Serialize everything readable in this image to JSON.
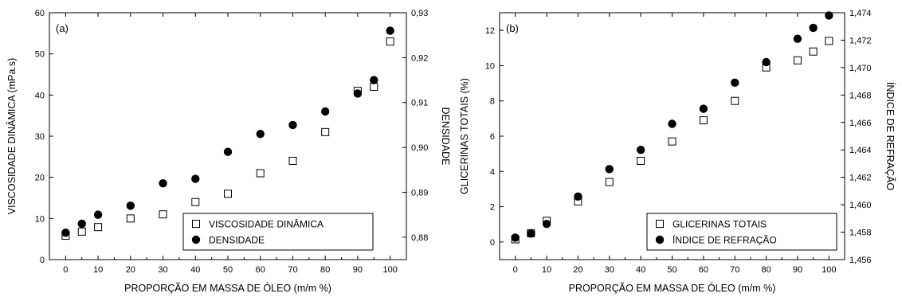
{
  "chart_data": [
    {
      "type": "scatter",
      "panel_label": "(a)",
      "xlabel": "PROPORÇÃO EM MASSA DE ÓLEO (m/m %)",
      "ylabel": "VISCOSIDADE DINÂMICA (mPa.s)",
      "y2label": "DENSIDADE",
      "xlim": [
        -5,
        105
      ],
      "ylim": [
        0,
        60
      ],
      "y2lim": [
        0.875,
        0.93
      ],
      "xticks": [
        0,
        10,
        20,
        30,
        40,
        50,
        60,
        70,
        80,
        90,
        100
      ],
      "yticks": [
        0,
        10,
        20,
        30,
        40,
        50,
        60
      ],
      "y2ticks": [
        0.88,
        0.89,
        0.9,
        0.91,
        0.92,
        0.93
      ],
      "xtick_labels": [
        "0",
        "10",
        "20",
        "30",
        "40",
        "50",
        "60",
        "70",
        "80",
        "90",
        "100"
      ],
      "ytick_labels": [
        "0",
        "10",
        "20",
        "30",
        "40",
        "50",
        "60"
      ],
      "y2tick_labels": [
        "0,88",
        "0,89",
        "0,90",
        "0,91",
        "0,92",
        "0,93"
      ],
      "legend_position": "bottom-right",
      "series": [
        {
          "name": "VISCOSIDADE DINÂMICA",
          "marker": "open-square",
          "axis": "left",
          "x": [
            0,
            5,
            10,
            20,
            30,
            40,
            50,
            60,
            70,
            80,
            90,
            95,
            100
          ],
          "y": [
            5.8,
            6.8,
            7.9,
            10,
            11,
            14,
            16,
            21,
            24,
            31,
            41,
            42,
            53
          ]
        },
        {
          "name": "DENSIDADE",
          "marker": "filled-circle",
          "axis": "right",
          "x": [
            0,
            5,
            10,
            20,
            30,
            40,
            50,
            60,
            70,
            80,
            90,
            95,
            100
          ],
          "y": [
            0.881,
            0.883,
            0.885,
            0.887,
            0.892,
            0.893,
            0.899,
            0.903,
            0.905,
            0.908,
            0.912,
            0.915,
            0.926
          ]
        }
      ]
    },
    {
      "type": "scatter",
      "panel_label": "(b)",
      "xlabel": "PROPORÇÃO EM MASSA DE ÓLEO (m/m %)",
      "ylabel": "GLICERINAS TOTAIS (%)",
      "y2label": "ÍNDICE DE REFRAÇÃO",
      "xlim": [
        -5,
        105
      ],
      "ylim": [
        -1,
        13
      ],
      "y2lim": [
        1.456,
        1.474
      ],
      "xticks": [
        0,
        10,
        20,
        30,
        40,
        50,
        60,
        70,
        80,
        90,
        100
      ],
      "yticks": [
        0,
        2,
        4,
        6,
        8,
        10,
        12
      ],
      "y2ticks": [
        1.456,
        1.458,
        1.46,
        1.462,
        1.464,
        1.466,
        1.468,
        1.47,
        1.472,
        1.474
      ],
      "xtick_labels": [
        "0",
        "10",
        "20",
        "30",
        "40",
        "50",
        "60",
        "70",
        "80",
        "90",
        "100"
      ],
      "ytick_labels": [
        "0",
        "2",
        "4",
        "6",
        "8",
        "10",
        "12"
      ],
      "y2tick_labels": [
        "1,456",
        "1,458",
        "1,460",
        "1,462",
        "1,464",
        "1,466",
        "1,468",
        "1,470",
        "1,472",
        "1,474"
      ],
      "legend_position": "bottom-right",
      "series": [
        {
          "name": "GLICERINAS TOTAIS",
          "marker": "open-square",
          "axis": "left",
          "x": [
            0,
            5,
            10,
            20,
            30,
            40,
            50,
            60,
            70,
            80,
            90,
            95,
            100
          ],
          "y": [
            0.15,
            0.5,
            1.2,
            2.3,
            3.4,
            4.6,
            5.7,
            6.9,
            8.0,
            9.9,
            10.3,
            10.8,
            11.4
          ]
        },
        {
          "name": "ÍNDICE DE REFRAÇÃO",
          "marker": "filled-circle",
          "axis": "right",
          "x": [
            0,
            5,
            10,
            20,
            30,
            40,
            50,
            60,
            70,
            80,
            90,
            95,
            100
          ],
          "y": [
            1.4576,
            1.4579,
            1.4586,
            1.4606,
            1.4626,
            1.464,
            1.4659,
            1.467,
            1.4689,
            1.4704,
            1.4721,
            1.4729,
            1.4738
          ]
        }
      ]
    }
  ]
}
